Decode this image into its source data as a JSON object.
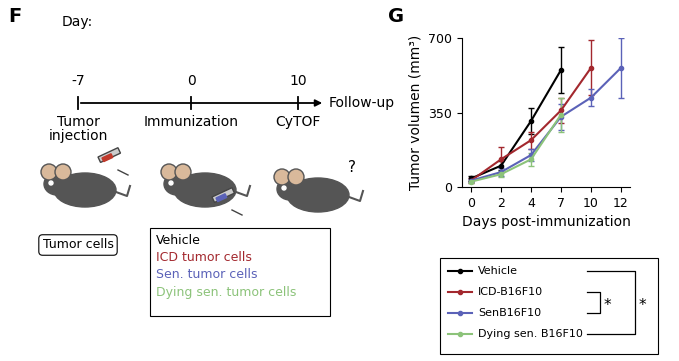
{
  "panel_labels": [
    "F",
    "G"
  ],
  "diagram": {
    "header": "Day:",
    "timeline": [
      {
        "day": -7,
        "label": "Tumor\ninjection"
      },
      {
        "day": 0,
        "label": "Immunization"
      },
      {
        "day": 10,
        "label": "CyTOF"
      }
    ],
    "end_label": "Follow-up",
    "question_mark": "?",
    "injection_box": "Tumor cells",
    "groups": [
      {
        "label": "Vehicle",
        "color": "#000000"
      },
      {
        "label": "ICD tumor cells",
        "color": "#a3282e"
      },
      {
        "label": "Sen. tumor cells",
        "color": "#5b62b8"
      },
      {
        "label": "Dying sen. tumor cells",
        "color": "#8cc37a"
      }
    ]
  },
  "chart_data": {
    "type": "line",
    "xlabel": "Days post-immunization",
    "ylabel": "Tumor volumen (mm³)",
    "categories": [
      "0",
      "2",
      "4",
      "7",
      "10",
      "12"
    ],
    "series": [
      {
        "name": "Vehicle",
        "color": "#000000",
        "values": [
          40,
          100,
          310,
          550,
          null,
          null
        ],
        "errors": [
          10,
          20,
          60,
          110,
          null,
          null
        ]
      },
      {
        "name": "ICD-B16F10",
        "color": "#a3282e",
        "values": [
          30,
          130,
          220,
          360,
          560,
          null
        ],
        "errors": [
          10,
          60,
          40,
          60,
          130,
          null
        ]
      },
      {
        "name": "SenB16F10",
        "color": "#5b62b8",
        "values": [
          30,
          70,
          150,
          330,
          420,
          560
        ],
        "errors": [
          8,
          20,
          30,
          60,
          40,
          140
        ]
      },
      {
        "name": "Dying sen. B16F10",
        "color": "#8cc37a",
        "values": [
          25,
          60,
          130,
          340,
          null,
          null
        ],
        "errors": [
          8,
          15,
          30,
          80,
          null,
          null
        ]
      }
    ],
    "marker": "o",
    "ylim": [
      0,
      700
    ],
    "yticks": [
      0,
      350,
      700
    ],
    "legend": "below",
    "significance": [
      {
        "between": [
          "Vehicle",
          "Dying sen. B16F10"
        ],
        "label": "*"
      },
      {
        "between": [
          "ICD-B16F10",
          "SenB16F10"
        ],
        "label": "*"
      }
    ]
  }
}
